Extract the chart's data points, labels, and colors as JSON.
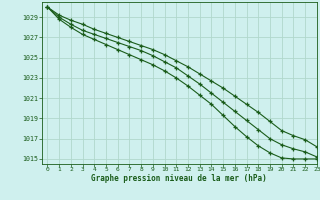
{
  "title": "Graphe pression niveau de la mer (hPa)",
  "background_color": "#cff0ee",
  "grid_color": "#b0d8cc",
  "line_color": "#1a5c1a",
  "marker_color": "#1a5c1a",
  "xlim": [
    -0.5,
    23
  ],
  "ylim": [
    1014.5,
    1030.5
  ],
  "xticks": [
    0,
    1,
    2,
    3,
    4,
    5,
    6,
    7,
    8,
    9,
    10,
    11,
    12,
    13,
    14,
    15,
    16,
    17,
    18,
    19,
    20,
    21,
    22,
    23
  ],
  "yticks": [
    1015,
    1017,
    1019,
    1021,
    1023,
    1025,
    1027,
    1029
  ],
  "x": [
    0,
    1,
    2,
    3,
    4,
    5,
    6,
    7,
    8,
    9,
    10,
    11,
    12,
    13,
    14,
    15,
    16,
    17,
    18,
    19,
    20,
    21,
    22,
    23
  ],
  "y_upper": [
    1030.0,
    1029.2,
    1028.7,
    1028.3,
    1027.8,
    1027.4,
    1027.0,
    1026.6,
    1026.2,
    1025.8,
    1025.3,
    1024.7,
    1024.1,
    1023.4,
    1022.7,
    1022.0,
    1021.2,
    1020.4,
    1019.6,
    1018.7,
    1017.8,
    1017.3,
    1016.9,
    1016.2
  ],
  "y_middle": [
    1030.0,
    1029.0,
    1028.3,
    1027.7,
    1027.3,
    1026.9,
    1026.5,
    1026.1,
    1025.7,
    1025.2,
    1024.6,
    1024.0,
    1023.2,
    1022.4,
    1021.5,
    1020.6,
    1019.7,
    1018.8,
    1017.9,
    1017.0,
    1016.4,
    1016.0,
    1015.7,
    1015.2
  ],
  "y_lower": [
    1030.0,
    1028.8,
    1028.0,
    1027.3,
    1026.8,
    1026.3,
    1025.8,
    1025.3,
    1024.8,
    1024.3,
    1023.7,
    1023.0,
    1022.2,
    1021.3,
    1020.4,
    1019.3,
    1018.2,
    1017.2,
    1016.3,
    1015.6,
    1015.1,
    1015.0,
    1015.0,
    1015.0
  ]
}
